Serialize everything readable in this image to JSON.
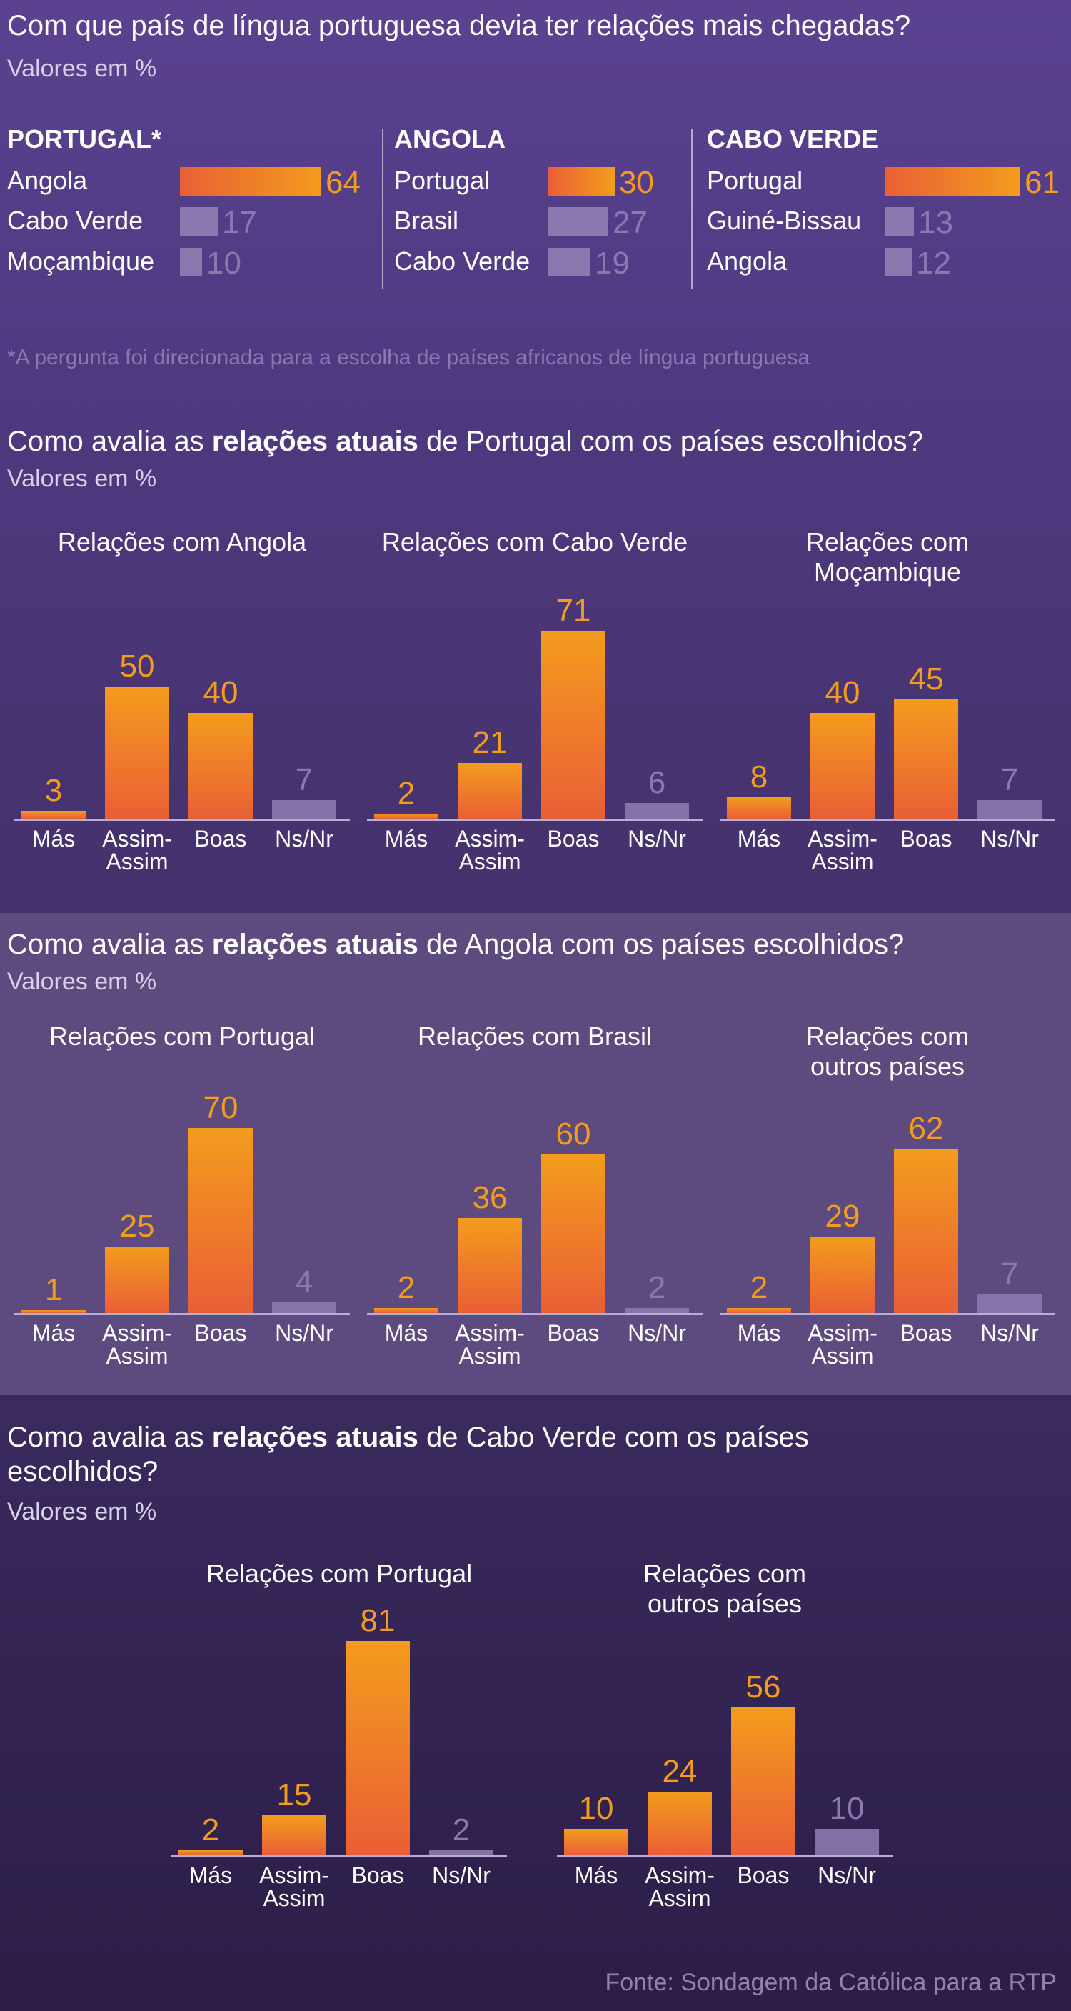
{
  "section1": {
    "title": "Com que país de língua portuguesa devia ter relações mais chegadas?",
    "subtitle": "Valores em %",
    "footnote": "*A pergunta foi direcionada para a escolha de países africanos de língua portuguesa",
    "columns": [
      {
        "header": "PORTUGAL*",
        "rows": [
          {
            "label": "Angola",
            "value": 64,
            "display": "64",
            "highlight": true
          },
          {
            "label": "Cabo Verde",
            "value": 17,
            "display": "17",
            "highlight": false
          },
          {
            "label": "Moçambique",
            "value": 10,
            "display": "10",
            "highlight": false
          }
        ]
      },
      {
        "header": "ANGOLA",
        "rows": [
          {
            "label": "Portugal",
            "value": 30,
            "display": "30",
            "highlight": true
          },
          {
            "label": "Brasil",
            "value": 27,
            "display": "27",
            "highlight": false
          },
          {
            "label": "Cabo Verde",
            "value": 19,
            "display": "19",
            "highlight": false
          }
        ]
      },
      {
        "header": "CABO VERDE",
        "rows": [
          {
            "label": "Portugal",
            "value": 61,
            "display": "61",
            "highlight": true
          },
          {
            "label": "Guiné-Bissau",
            "value": 13,
            "display": "13",
            "highlight": false
          },
          {
            "label": "Angola",
            "value": 12,
            "display": "12",
            "highlight": false
          }
        ]
      }
    ]
  },
  "section2": {
    "title_pre": "Como avalia as ",
    "title_bold": "relações atuais",
    "title_post": " de Portugal com os países escolhidos?",
    "subtitle": "Valores em %"
  },
  "section3": {
    "title_pre": "Como avalia as ",
    "title_bold": "relações atuais",
    "title_post": " de Angola com os países escolhidos?",
    "subtitle": "Valores em %"
  },
  "section4": {
    "title_pre": "Como avalia as ",
    "title_bold": "relações atuais",
    "title_post": " de Cabo Verde com os países escolhidos?",
    "subtitle": "Valores em %"
  },
  "source": "Fonte: Sondagem da Católica para a RTP",
  "colors": {
    "accent_start": "#f39c1d",
    "accent_end": "#e95f35",
    "muted": "#8a79ae"
  },
  "chart_data": [
    {
      "type": "bar",
      "title": "Relações com Angola",
      "categories": [
        "Más",
        "Assim-Assim",
        "Boas",
        "Ns/Nr"
      ],
      "cat_lines": [
        [
          "Más"
        ],
        [
          "Assim-",
          "Assim"
        ],
        [
          "Boas"
        ],
        [
          "Ns/Nr"
        ]
      ],
      "values": [
        3,
        50,
        40,
        7
      ],
      "ylim": [
        0,
        81
      ],
      "highlight": [
        true,
        true,
        true,
        false
      ]
    },
    {
      "type": "bar",
      "title": "Relações com Cabo Verde",
      "categories": [
        "Más",
        "Assim-Assim",
        "Boas",
        "Ns/Nr"
      ],
      "cat_lines": [
        [
          "Más"
        ],
        [
          "Assim-",
          "Assim"
        ],
        [
          "Boas"
        ],
        [
          "Ns/Nr"
        ]
      ],
      "values": [
        2,
        21,
        71,
        6
      ],
      "ylim": [
        0,
        81
      ],
      "highlight": [
        true,
        true,
        true,
        false
      ]
    },
    {
      "type": "bar",
      "title": "Relações com Moçambique",
      "title_lines": [
        "Relações com",
        "Moçambique"
      ],
      "categories": [
        "Más",
        "Assim-Assim",
        "Boas",
        "Ns/Nr"
      ],
      "cat_lines": [
        [
          "Más"
        ],
        [
          "Assim-",
          "Assim"
        ],
        [
          "Boas"
        ],
        [
          "Ns/Nr"
        ]
      ],
      "values": [
        8,
        40,
        45,
        7
      ],
      "ylim": [
        0,
        81
      ],
      "highlight": [
        true,
        true,
        true,
        false
      ]
    },
    {
      "type": "bar",
      "title": "Relações com Portugal",
      "categories": [
        "Más",
        "Assim-Assim",
        "Boas",
        "Ns/Nr"
      ],
      "cat_lines": [
        [
          "Más"
        ],
        [
          "Assim-",
          "Assim"
        ],
        [
          "Boas"
        ],
        [
          "Ns/Nr"
        ]
      ],
      "values": [
        1,
        25,
        70,
        4
      ],
      "ylim": [
        0,
        81
      ],
      "highlight": [
        true,
        true,
        true,
        false
      ]
    },
    {
      "type": "bar",
      "title": "Relações com Brasil",
      "categories": [
        "Más",
        "Assim-Assim",
        "Boas",
        "Ns/Nr"
      ],
      "cat_lines": [
        [
          "Más"
        ],
        [
          "Assim-",
          "Assim"
        ],
        [
          "Boas"
        ],
        [
          "Ns/Nr"
        ]
      ],
      "values": [
        2,
        36,
        60,
        2
      ],
      "ylim": [
        0,
        81
      ],
      "highlight": [
        true,
        true,
        true,
        false
      ]
    },
    {
      "type": "bar",
      "title": "Relações com outros países",
      "title_lines": [
        "Relações com",
        "outros países"
      ],
      "categories": [
        "Más",
        "Assim-Assim",
        "Boas",
        "Ns/Nr"
      ],
      "cat_lines": [
        [
          "Más"
        ],
        [
          "Assim-",
          "Assim"
        ],
        [
          "Boas"
        ],
        [
          "Ns/Nr"
        ]
      ],
      "values": [
        2,
        29,
        62,
        7
      ],
      "ylim": [
        0,
        81
      ],
      "highlight": [
        true,
        true,
        true,
        false
      ]
    },
    {
      "type": "bar",
      "title": "Relações com Portugal",
      "categories": [
        "Más",
        "Assim-Assim",
        "Boas",
        "Ns/Nr"
      ],
      "cat_lines": [
        [
          "Más"
        ],
        [
          "Assim-",
          "Assim"
        ],
        [
          "Boas"
        ],
        [
          "Ns/Nr"
        ]
      ],
      "values": [
        2,
        15,
        81,
        2
      ],
      "ylim": [
        0,
        81
      ],
      "highlight": [
        true,
        true,
        true,
        false
      ]
    },
    {
      "type": "bar",
      "title": "Relações com outros países",
      "title_lines": [
        "Relações com",
        "outros países"
      ],
      "categories": [
        "Más",
        "Assim-Assim",
        "Boas",
        "Ns/Nr"
      ],
      "cat_lines": [
        [
          "Más"
        ],
        [
          "Assim-",
          "Assim"
        ],
        [
          "Boas"
        ],
        [
          "Ns/Nr"
        ]
      ],
      "values": [
        10,
        24,
        56,
        10
      ],
      "ylim": [
        0,
        81
      ],
      "highlight": [
        true,
        true,
        true,
        false
      ]
    }
  ]
}
